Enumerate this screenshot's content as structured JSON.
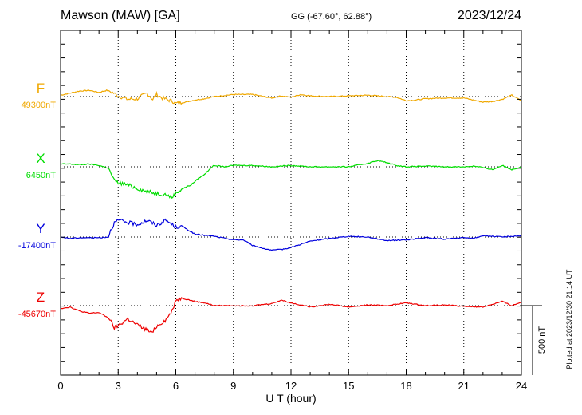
{
  "chart_data": {
    "type": "line",
    "title": "Mawson (MAW)  [GA]",
    "coords": "GG (-67.60°,  62.88°)",
    "date": "2023/12/24",
    "xlabel": "U T (hour)",
    "xlim": [
      0,
      24
    ],
    "x_ticks": [
      "0",
      "3",
      "6",
      "9",
      "12",
      "15",
      "18",
      "21",
      "24"
    ],
    "grid": true,
    "scale_bar_label": "500 nT",
    "scale_bar_nT": 500,
    "plotted_note": "Plotted at 2023/12/30 21:14 UT",
    "series": [
      {
        "name": "F",
        "baseline_label": "49300nT",
        "color": "#f0a800",
        "x": [
          0,
          0.5,
          1,
          1.5,
          2,
          2.4,
          2.7,
          3,
          3.5,
          4,
          4.5,
          4.8,
          5,
          5.3,
          5.6,
          5.8,
          6,
          6.5,
          7,
          7.5,
          8,
          9,
          10,
          11,
          11.5,
          12,
          12.5,
          13,
          14,
          15,
          16,
          17,
          17.5,
          18,
          18.5,
          19,
          20,
          21,
          21.5,
          22,
          22.5,
          23,
          23.5,
          24
        ],
        "y": [
          10,
          25,
          40,
          45,
          30,
          45,
          30,
          5,
          -20,
          -15,
          25,
          -20,
          15,
          -10,
          -25,
          -30,
          -50,
          -40,
          -25,
          -15,
          0,
          15,
          15,
          -10,
          5,
          -5,
          15,
          5,
          0,
          5,
          10,
          0,
          -5,
          -30,
          -25,
          -15,
          -10,
          -10,
          -25,
          -40,
          -35,
          -20,
          10,
          -30
        ]
      },
      {
        "name": "X",
        "baseline_label": "6450nT",
        "color": "#00dd00",
        "x": [
          0,
          0.5,
          1,
          1.5,
          2,
          2.5,
          2.8,
          3,
          3.5,
          4,
          4.5,
          5,
          5.5,
          5.8,
          6,
          6.3,
          6.8,
          7.2,
          7.5,
          7.8,
          8,
          8.5,
          9,
          10,
          11,
          12,
          13,
          14,
          15,
          16,
          16.5,
          17,
          17.5,
          18,
          19,
          20,
          21,
          21.5,
          22,
          22.5,
          23,
          23.5,
          24
        ],
        "y": [
          20,
          20,
          15,
          20,
          10,
          -10,
          -100,
          -115,
          -130,
          -155,
          -180,
          -190,
          -200,
          -220,
          -190,
          -160,
          -130,
          -80,
          -55,
          -10,
          10,
          0,
          10,
          10,
          0,
          10,
          0,
          0,
          0,
          25,
          45,
          30,
          10,
          0,
          5,
          0,
          0,
          5,
          -5,
          -20,
          10,
          -20,
          0
        ]
      },
      {
        "name": "Y",
        "baseline_label": "-17400nT",
        "color": "#0000dd",
        "x": [
          0,
          0.5,
          1,
          1.5,
          2,
          2.5,
          2.6,
          2.8,
          3,
          3.5,
          4,
          4.5,
          5,
          5.5,
          6,
          6.3,
          7,
          8,
          9,
          9.5,
          10,
          10.5,
          11,
          11.5,
          12,
          13,
          14,
          15,
          16,
          17,
          18,
          19,
          20,
          21,
          21.5,
          22,
          22.5,
          23,
          24
        ],
        "y": [
          0,
          -10,
          -5,
          -5,
          -5,
          0,
          50,
          100,
          120,
          105,
          90,
          120,
          85,
          120,
          70,
          80,
          20,
          5,
          -20,
          -20,
          -60,
          -80,
          -95,
          -90,
          -75,
          -30,
          -10,
          5,
          0,
          -25,
          -20,
          -5,
          -15,
          -5,
          -10,
          10,
          5,
          0,
          10
        ]
      },
      {
        "name": "Z",
        "baseline_label": "-45670nT",
        "color": "#ee0000",
        "x": [
          0,
          0.5,
          1,
          1.5,
          2,
          2.5,
          2.8,
          3,
          3.5,
          4,
          4.5,
          4.7,
          5,
          5.5,
          5.8,
          6,
          6.3,
          7,
          7.5,
          8,
          9,
          10,
          11,
          11.5,
          12,
          13,
          14,
          15,
          16,
          17,
          18,
          18.5,
          19,
          20,
          21,
          22,
          23,
          23.5,
          24
        ],
        "y": [
          -20,
          -10,
          -40,
          -55,
          -50,
          -90,
          -160,
          -145,
          -95,
          -140,
          -175,
          -195,
          -150,
          -100,
          -40,
          40,
          55,
          30,
          20,
          0,
          0,
          0,
          15,
          40,
          20,
          -10,
          10,
          -10,
          5,
          0,
          20,
          10,
          0,
          5,
          -5,
          -10,
          30,
          0,
          25
        ]
      }
    ]
  }
}
